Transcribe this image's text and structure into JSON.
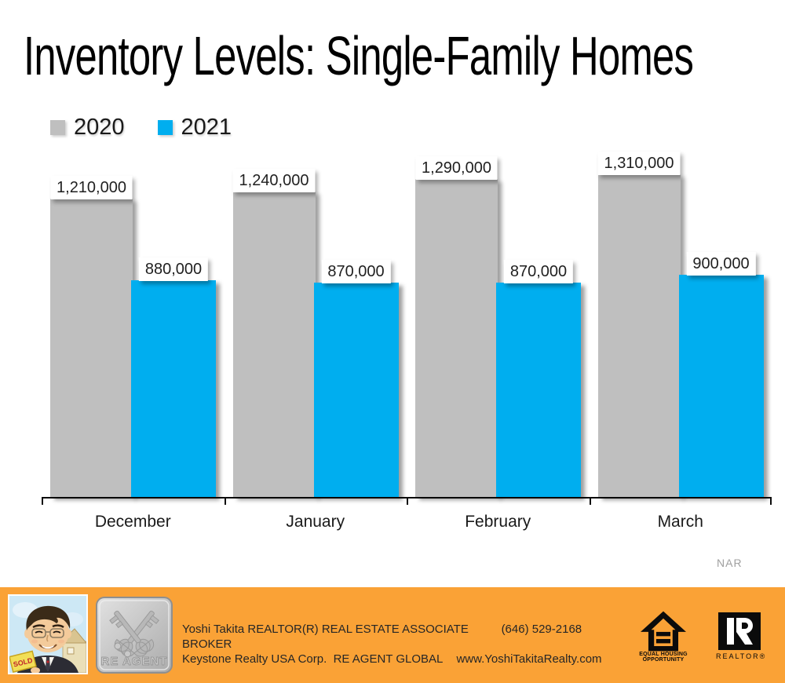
{
  "title": "Inventory Levels: Single-Family Homes",
  "chart_data": {
    "type": "bar",
    "categories": [
      "December",
      "January",
      "February",
      "March"
    ],
    "series": [
      {
        "name": "2020",
        "color": "#BFBFBF",
        "values": [
          1210000,
          1240000,
          1290000,
          1310000
        ]
      },
      {
        "name": "2021",
        "color": "#00AEEF",
        "values": [
          880000,
          870000,
          870000,
          900000
        ]
      }
    ],
    "data_labels": [
      [
        "1,210,000",
        "1,240,000",
        "1,290,000",
        "1,310,000"
      ],
      [
        "880,000",
        "870,000",
        "870,000",
        "900,000"
      ]
    ],
    "title": "Inventory Levels: Single-Family Homes",
    "xlabel": "",
    "ylabel": "",
    "ylim": [
      0,
      1417000
    ],
    "grid": false,
    "legend_position": "top-left",
    "source": "NAR"
  },
  "source_note": "NAR",
  "footer": {
    "background_color": "#FAA236",
    "line1_left": "Yoshi Takita REALTOR(R) REAL ESTATE ASSOCIATE BROKER",
    "line1_right": "(646) 529-2168",
    "line2_left": "Keystone Realty USA Corp.  RE AGENT GLOBAL",
    "line2_right": "www.YoshiTakitaRealty.com",
    "badge_label": "RE AGENT",
    "photo_sign_text": "SOLD",
    "equal_housing_caption_line1": "EQUAL HOUSING",
    "equal_housing_caption_line2": "OPPORTUNITY",
    "realtor_caption": "REALTOR®"
  }
}
